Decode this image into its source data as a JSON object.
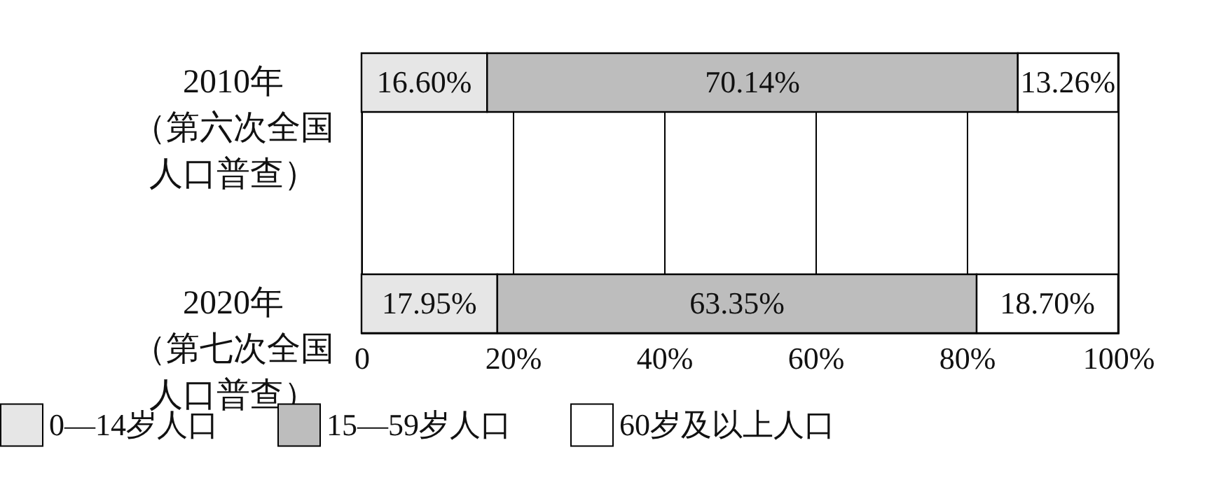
{
  "chart_data": {
    "type": "bar",
    "orientation": "horizontal",
    "stacked": true,
    "categories": [
      "2010年（第六次全国人口普查）",
      "2020年（第七次全国人口普查）"
    ],
    "series": [
      {
        "name": "0—14岁人口",
        "color": "#e6e6e6",
        "values": [
          16.6,
          17.95
        ],
        "value_labels": [
          "16.60%",
          "17.95%"
        ]
      },
      {
        "name": "15—59岁人口",
        "color": "#bdbdbd",
        "values": [
          70.14,
          63.35
        ],
        "value_labels": [
          "70.14%",
          "63.35%"
        ]
      },
      {
        "name": "60岁及以上人口",
        "color": "#ffffff",
        "values": [
          13.26,
          18.7
        ],
        "value_labels": [
          "13.26%",
          "18.70%"
        ]
      }
    ],
    "xlim": [
      0,
      100
    ],
    "xticks": [
      0,
      {
        "value": 20,
        "label": "20%"
      },
      {
        "value": 40,
        "label": "40%"
      },
      {
        "value": 60,
        "label": "60%"
      },
      {
        "value": 80,
        "label": "80%"
      },
      {
        "value": 100,
        "label": "100%"
      }
    ],
    "grid": "x",
    "legend": "bottom"
  }
}
